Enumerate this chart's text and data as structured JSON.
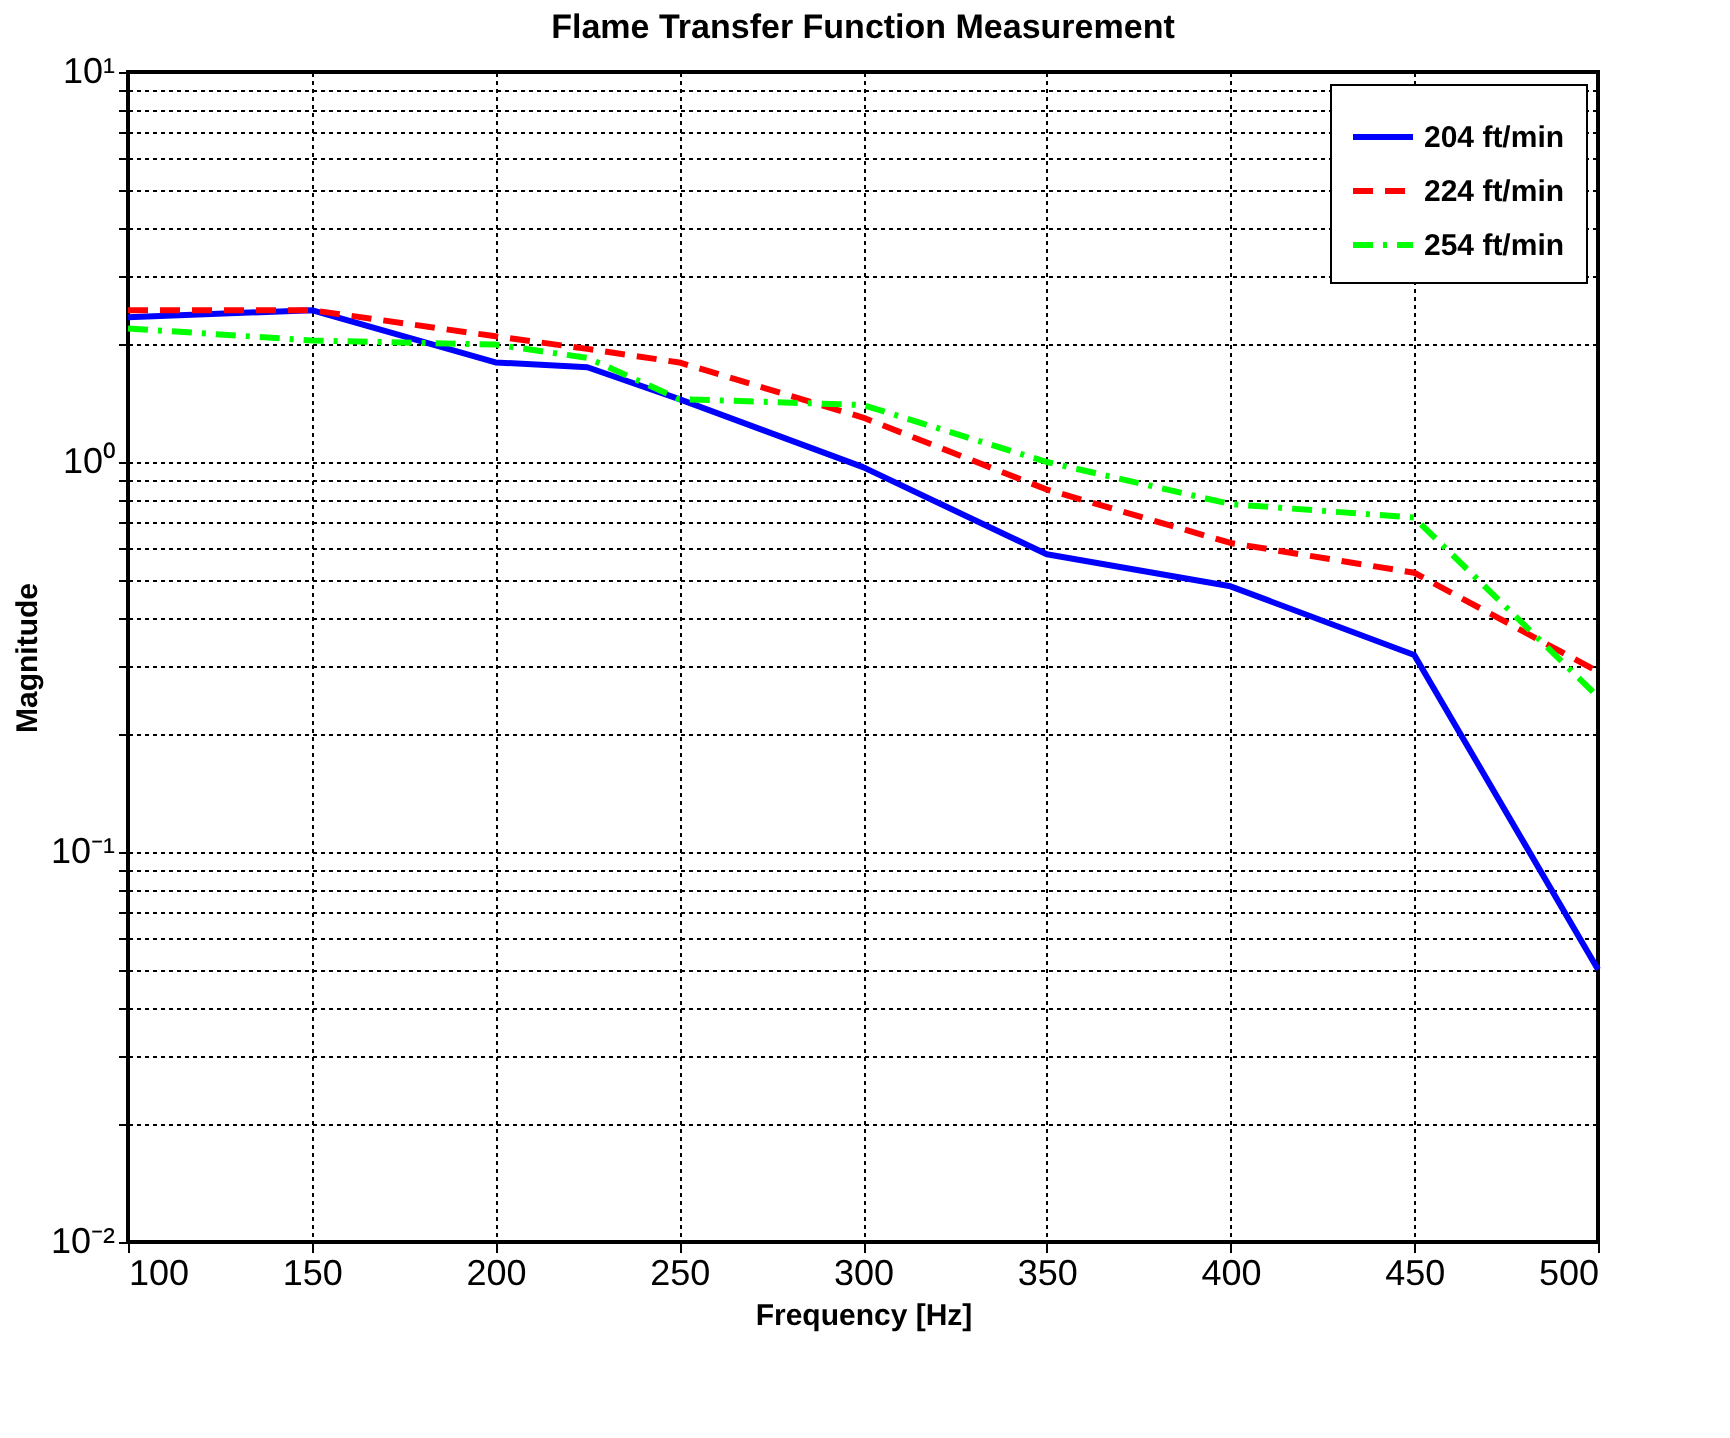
{
  "chart_data": {
    "type": "line",
    "title": "Flame Transfer Function Measurement",
    "xlabel": "Frequency [Hz]",
    "ylabel": "Magnitude",
    "x": [
      100,
      150,
      200,
      225,
      250,
      300,
      350,
      400,
      450,
      500
    ],
    "series": [
      {
        "name": "204 ft/min",
        "color": "#0000ff",
        "line_style": "solid",
        "values": [
          2.35,
          2.45,
          1.8,
          1.75,
          1.45,
          0.97,
          0.58,
          0.48,
          0.32,
          0.05
        ]
      },
      {
        "name": "224 ft/min",
        "color": "#ff0000",
        "line_style": "dashed",
        "values": [
          2.45,
          2.45,
          2.1,
          1.95,
          1.8,
          1.3,
          0.85,
          0.62,
          0.52,
          0.29
        ]
      },
      {
        "name": "254 ft/min",
        "color": "#00ff00",
        "line_style": "dashdot",
        "values": [
          2.2,
          2.05,
          2.0,
          1.85,
          1.45,
          1.4,
          1.0,
          0.78,
          0.72,
          0.25
        ]
      }
    ],
    "xlim": [
      100,
      500
    ],
    "xticks": [
      100,
      150,
      200,
      250,
      300,
      350,
      400,
      450,
      500
    ],
    "ylim": [
      0.01,
      10
    ],
    "log": true,
    "yticks": [
      {
        "value": 0.01,
        "label": "10⁻²"
      },
      {
        "value": 0.02,
        "label": null
      },
      {
        "value": 0.03,
        "label": null
      },
      {
        "value": 0.04,
        "label": null
      },
      {
        "value": 0.05,
        "label": null
      },
      {
        "value": 0.06,
        "label": null
      },
      {
        "value": 0.07,
        "label": null
      },
      {
        "value": 0.08,
        "label": null
      },
      {
        "value": 0.09,
        "label": null
      },
      {
        "value": 0.1,
        "label": "10⁻¹"
      },
      {
        "value": 0.2,
        "label": null
      },
      {
        "value": 0.3,
        "label": null
      },
      {
        "value": 0.4,
        "label": null
      },
      {
        "value": 0.5,
        "label": null
      },
      {
        "value": 0.6,
        "label": null
      },
      {
        "value": 0.7,
        "label": null
      },
      {
        "value": 0.8,
        "label": null
      },
      {
        "value": 0.9,
        "label": null
      },
      {
        "value": 1,
        "label": "10⁰"
      },
      {
        "value": 2,
        "label": null
      },
      {
        "value": 3,
        "label": null
      },
      {
        "value": 4,
        "label": null
      },
      {
        "value": 5,
        "label": null
      },
      {
        "value": 6,
        "label": null
      },
      {
        "value": 7,
        "label": null
      },
      {
        "value": 8,
        "label": null
      },
      {
        "value": 9,
        "label": null
      },
      {
        "value": 10,
        "label": "10¹"
      }
    ],
    "grid": true,
    "legend": "top right",
    "marker": "none"
  }
}
